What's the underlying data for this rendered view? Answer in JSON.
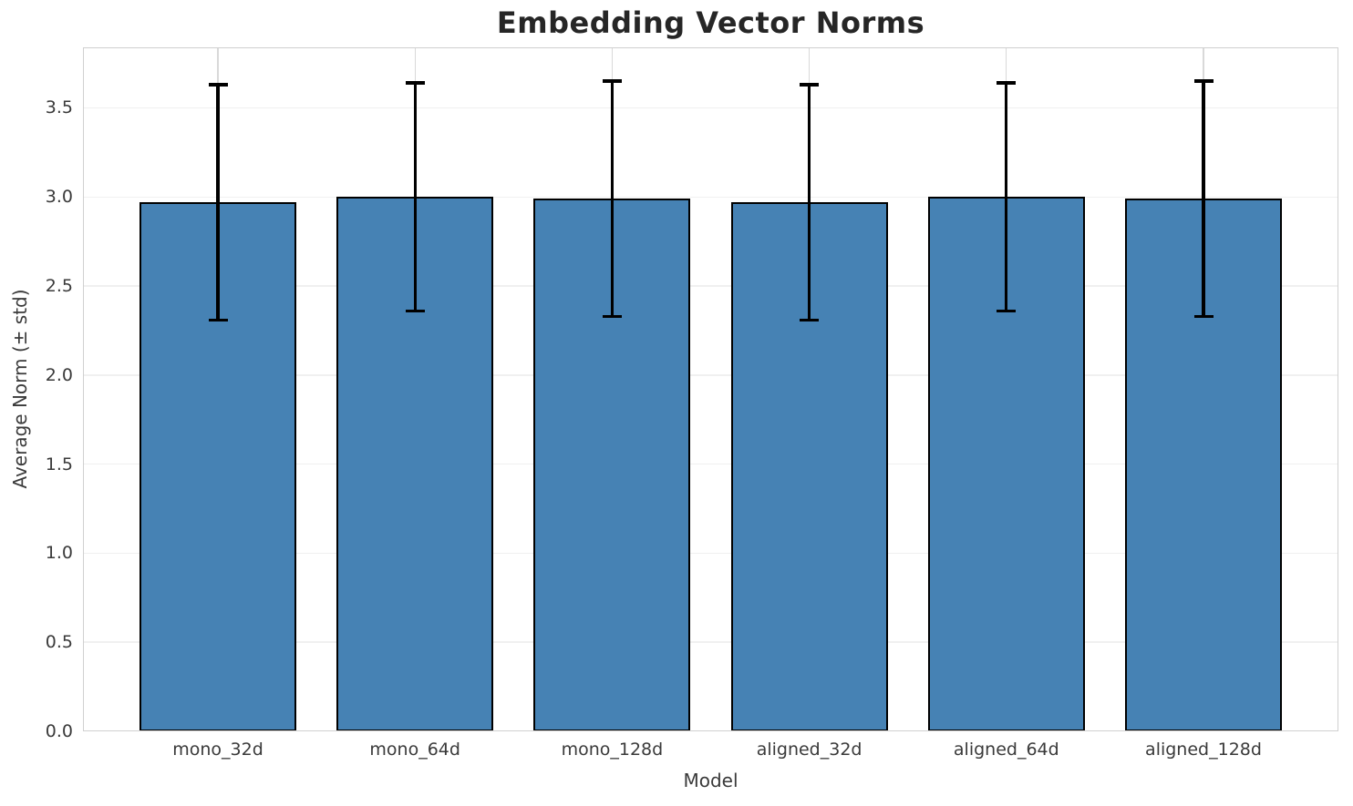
{
  "chart_data": {
    "type": "bar",
    "title": "Embedding Vector Norms",
    "xlabel": "Model",
    "ylabel": "Average Norm (± std)",
    "categories": [
      "mono_32d",
      "mono_64d",
      "mono_128d",
      "aligned_32d",
      "aligned_64d",
      "aligned_128d"
    ],
    "values": [
      2.97,
      3.0,
      2.99,
      2.97,
      3.0,
      2.99
    ],
    "errors": [
      0.66,
      0.64,
      0.66,
      0.66,
      0.64,
      0.66
    ],
    "error_style": "plus-minus-std with caps",
    "yticks": [
      0.0,
      0.5,
      1.0,
      1.5,
      2.0,
      2.5,
      3.0,
      3.5
    ],
    "ytick_format": "one-decimal",
    "ylim": [
      0,
      3.84
    ],
    "grid": "both-x-and-y",
    "legend": "none",
    "colors": {
      "bar_fill": "#4682B4",
      "bar_edge": "#000000",
      "error_bar": "#000000",
      "hgrid": "#f0f0f0",
      "vgrid": "#d9d9d9",
      "spine": "#d0d0d0",
      "title_text": "#262626",
      "tick_text": "#3a3a3a"
    }
  }
}
